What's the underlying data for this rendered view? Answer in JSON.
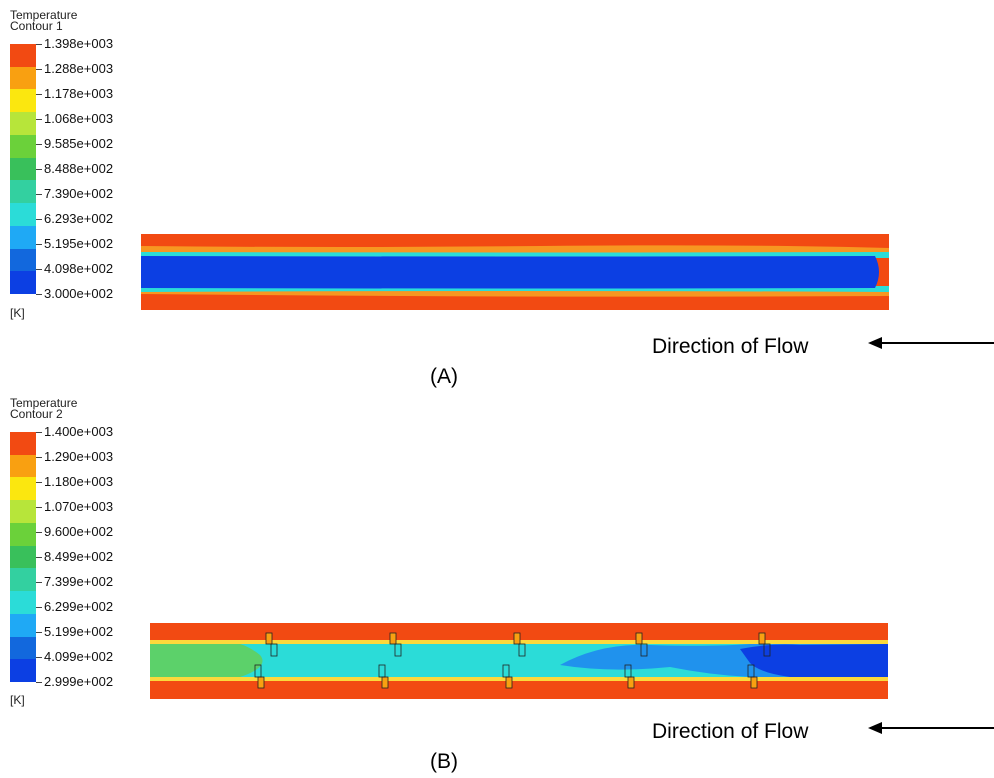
{
  "panel_a": {
    "legend_title_line1": "Temperature",
    "legend_title_line2": "Contour 1",
    "levels": [
      "1.398e+003",
      "1.288e+003",
      "1.178e+003",
      "1.068e+003",
      "9.585e+002",
      "8.488e+002",
      "7.390e+002",
      "6.293e+002",
      "5.195e+002",
      "4.098e+002",
      "3.000e+002"
    ],
    "unit": "[K]",
    "flow_label": "Direction of Flow",
    "caption": "(A)"
  },
  "panel_b": {
    "legend_title_line1": "Temperature",
    "legend_title_line2": "Contour 2",
    "levels": [
      "1.400e+003",
      "1.290e+003",
      "1.180e+003",
      "1.070e+003",
      "9.600e+002",
      "8.499e+002",
      "7.399e+002",
      "6.299e+002",
      "5.199e+002",
      "4.099e+002",
      "2.999e+002"
    ],
    "unit": "[K]",
    "flow_label": "Direction of Flow",
    "caption": "(B)"
  },
  "colormap": [
    "#f24a12",
    "#f9a011",
    "#fbe70f",
    "#b7e53a",
    "#6bd13a",
    "#39c05b",
    "#33d0a0",
    "#2bdcd8",
    "#1fa9f5",
    "#1268dd",
    "#0c3fe3"
  ],
  "colors": {
    "hot_wall": "#f24a12",
    "core_cold": "#0c3fe3",
    "core_mid": "#2bdcd8",
    "core_green": "#5cd16a",
    "edge_yellow": "#fbd93c",
    "flow_arrow": "#000000"
  }
}
